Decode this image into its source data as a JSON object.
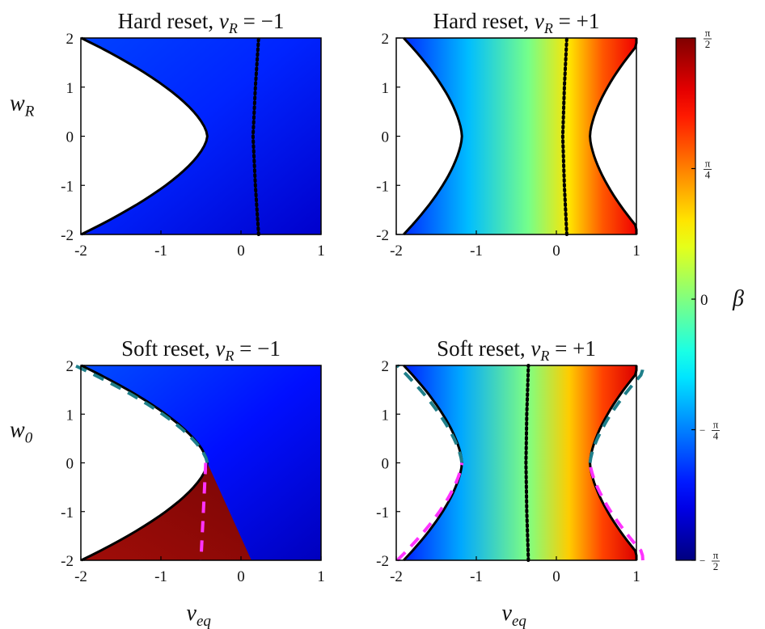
{
  "chart_data": [
    {
      "type": "heatmap",
      "title": "Hard reset, v_R = −1",
      "title_parts": {
        "prefix": "Hard reset,",
        "var": "v",
        "sub": "R",
        "rhs": "= −1"
      },
      "xlabel": "",
      "ylabel": "w_R",
      "ylabel_parts": {
        "var": "w",
        "sub": "R"
      },
      "xlim": [
        -2,
        1
      ],
      "ylim": [
        -2,
        2
      ],
      "x_ticks": [
        "-2",
        "-1",
        "0",
        "1"
      ],
      "y_ticks": [
        "-2",
        "-1",
        "0",
        "1",
        "2"
      ],
      "reset_v": -1,
      "mode": "hard",
      "region_boundary_vertex_x": -0.42,
      "dotted_curve_x": [
        0.22,
        0.18,
        0.15,
        0.18,
        0.22
      ],
      "dotted_curve_y": [
        -2,
        -1,
        0,
        1,
        2
      ]
    },
    {
      "type": "heatmap",
      "title": "Hard reset, v_R = +1",
      "title_parts": {
        "prefix": "Hard reset,",
        "var": "v",
        "sub": "R",
        "rhs": "= +1"
      },
      "xlabel": "",
      "ylabel": "",
      "xlim": [
        -2,
        1
      ],
      "ylim": [
        -2,
        2
      ],
      "x_ticks": [
        "-2",
        "-1",
        "0",
        "1"
      ],
      "y_ticks": [
        "-2",
        "-1",
        "0",
        "1",
        "2"
      ],
      "reset_v": 1,
      "mode": "hard",
      "region_boundary_vertex_x": [
        -1.18,
        0.42
      ],
      "dotted_curve_x": [
        0.13,
        0.1,
        0.08,
        0.1,
        0.13
      ],
      "dotted_curve_y": [
        -2,
        -1,
        0,
        1,
        2
      ]
    },
    {
      "type": "heatmap",
      "title": "Soft reset, v_R = −1",
      "title_parts": {
        "prefix": "Soft reset,",
        "var": "v",
        "sub": "R",
        "rhs": "= −1"
      },
      "xlabel": "v_eq",
      "xlabel_parts": {
        "var": "v",
        "sub": "eq"
      },
      "ylabel": "w_0",
      "ylabel_parts": {
        "var": "w",
        "sub": "0"
      },
      "xlim": [
        -2,
        1
      ],
      "ylim": [
        -2,
        2
      ],
      "x_ticks": [
        "-2",
        "-1",
        "0",
        "1"
      ],
      "y_ticks": [
        "-2",
        "-1",
        "0",
        "1",
        "2"
      ],
      "reset_v": -1,
      "mode": "soft",
      "region_boundary_vertex_x": -0.42,
      "red_region_right_edge_x": [
        -0.42,
        0.13
      ],
      "dashed_teal_x": [
        -0.42,
        -0.72
      ],
      "dashed_magenta_x": [
        -0.5,
        -0.5
      ]
    },
    {
      "type": "heatmap",
      "title": "Soft reset, v_R = +1",
      "title_parts": {
        "prefix": "Soft reset,",
        "var": "v",
        "sub": "R",
        "rhs": "= +1"
      },
      "xlabel": "v_eq",
      "xlabel_parts": {
        "var": "v",
        "sub": "eq"
      },
      "ylabel": "",
      "xlim": [
        -2,
        1
      ],
      "ylim": [
        -2,
        2
      ],
      "x_ticks": [
        "-2",
        "-1",
        "0",
        "1"
      ],
      "y_ticks": [
        "-2",
        "-1",
        "0",
        "1",
        "2"
      ],
      "reset_v": 1,
      "mode": "soft",
      "region_boundary_vertex_x": [
        -1.18,
        0.42
      ],
      "dotted_curve_x": [
        -0.35,
        -0.37,
        -0.38,
        -0.37,
        -0.35
      ],
      "dotted_curve_y": [
        -2,
        -1,
        0,
        1,
        2
      ]
    }
  ],
  "colorbar": {
    "label": "β",
    "colormap": "jet",
    "range": [
      "-π/2",
      "π/2"
    ],
    "ticks": [
      {
        "value": 1.0,
        "num": "π",
        "den": "2",
        "neg": false
      },
      {
        "value": 0.5,
        "num": "π",
        "den": "4",
        "neg": false
      },
      {
        "value": 0.0,
        "text": "0"
      },
      {
        "value": -0.5,
        "num": "π",
        "den": "4",
        "neg": true
      },
      {
        "value": -1.0,
        "num": "π",
        "den": "2",
        "neg": true
      }
    ]
  },
  "colors": {
    "boundary": "#000000",
    "dotted": "#000000",
    "dashed_teal": "#1f7f8a",
    "dashed_magenta": "#ff33ff"
  }
}
